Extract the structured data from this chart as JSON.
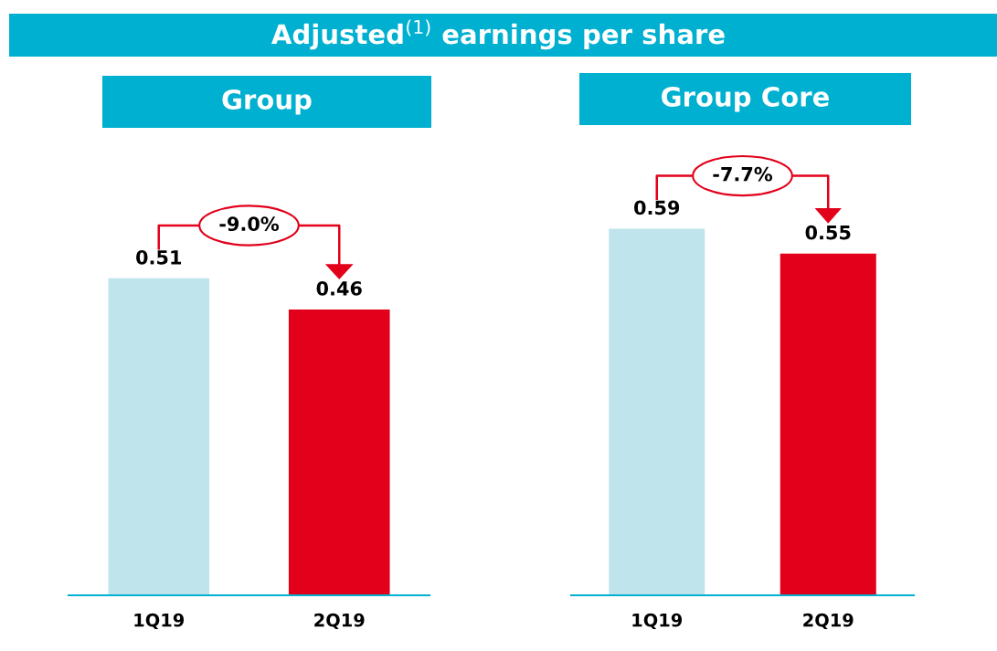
{
  "chart_data": [
    {
      "type": "bar",
      "title": "Group",
      "annotations": [
        "Adjusted$^{(1)}$ earnings per share",
        "-9.0%"
      ],
      "categories": [
        "1Q19",
        "2Q19"
      ],
      "values": [
        0.51,
        0.46
      ],
      "colors": [
        "#c0e4ec",
        "#e2001a"
      ],
      "data_labels": true,
      "grid": false,
      "tick_labels": "x"
    },
    {
      "type": "bar",
      "title": "Group Core",
      "annotations": [
        "-7.7%"
      ],
      "categories": [
        "1Q19",
        "2Q19"
      ],
      "values": [
        0.59,
        0.55
      ],
      "colors": [
        "#c0e4ec",
        "#e2001a"
      ],
      "data_labels": true,
      "grid": false,
      "tick_labels": "x"
    }
  ]
}
